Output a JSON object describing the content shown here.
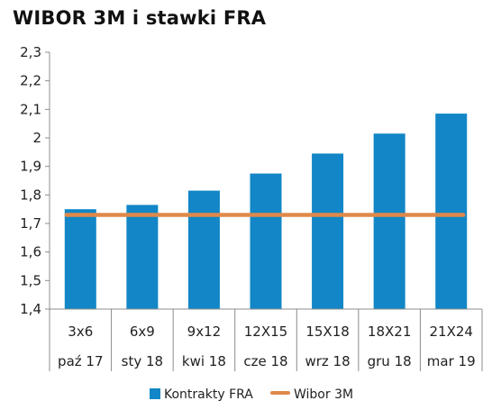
{
  "title": "WIBOR 3M i stawki FRA",
  "colors": {
    "bars": "#1286C6",
    "line": "#E0894A",
    "axis": "#8C8C8C",
    "grid": "#8C8C8C"
  },
  "chart_data": {
    "type": "bar",
    "title": "WIBOR 3M i stawki FRA",
    "categories": [
      "3x6",
      "6x9",
      "9x12",
      "12X15",
      "15X18",
      "18X21",
      "21X24"
    ],
    "category_dates": [
      "paź 17",
      "sty 18",
      "kwi 18",
      "cze 18",
      "wrz 18",
      "gru 18",
      "mar 19"
    ],
    "ylim": [
      1.4,
      2.3
    ],
    "yticks": [
      "1,4",
      "1,5",
      "1,6",
      "1,7",
      "1,8",
      "1,9",
      "2",
      "2,1",
      "2,2",
      "2,3"
    ],
    "grid": false,
    "legend_position": "bottom",
    "series": [
      {
        "name": "Kontrakty FRA",
        "type": "bar",
        "values": [
          1.75,
          1.765,
          1.815,
          1.875,
          1.945,
          2.015,
          2.085
        ]
      },
      {
        "name": "Wibor 3M",
        "type": "line",
        "values": [
          1.73,
          1.73,
          1.73,
          1.73,
          1.73,
          1.73,
          1.73
        ]
      }
    ]
  }
}
